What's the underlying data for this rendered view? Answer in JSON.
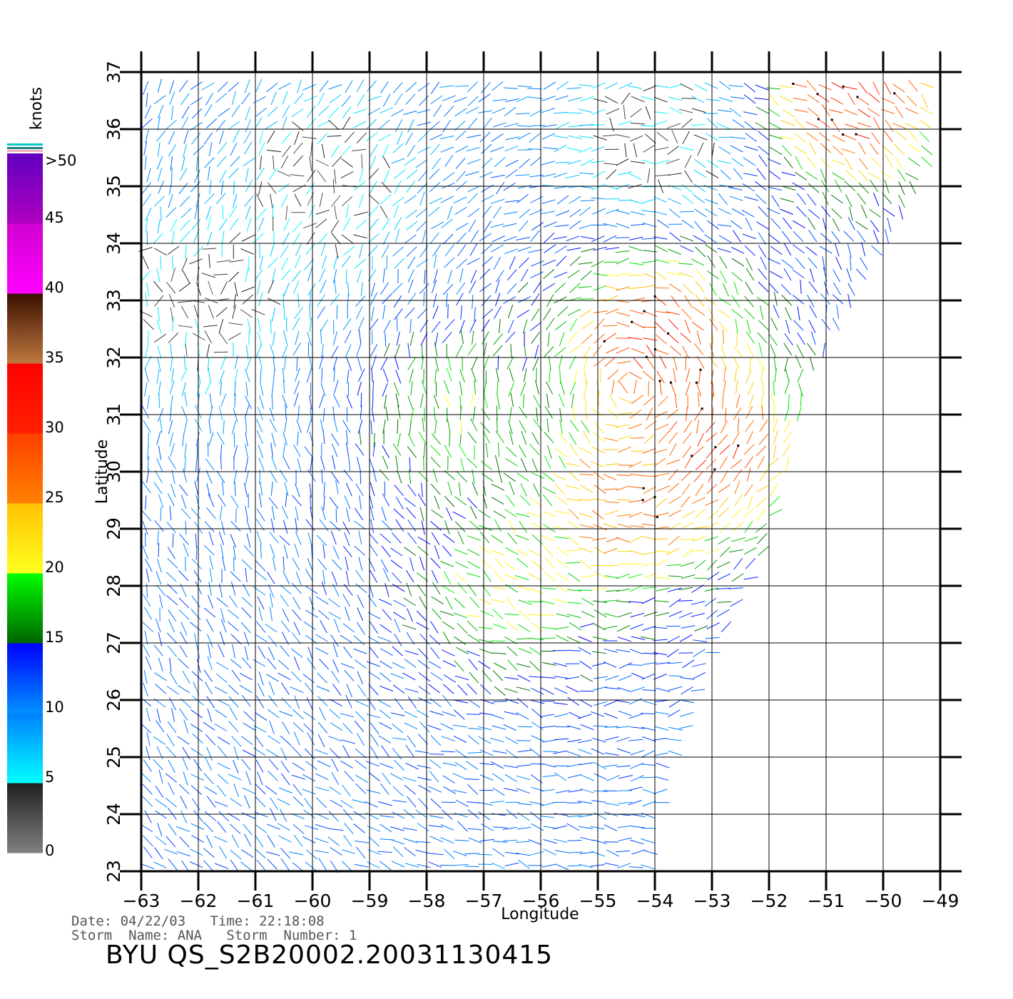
{
  "chart_data": {
    "type": "scatter",
    "title": "",
    "xlabel": "Longitude",
    "ylabel": "Latitude",
    "xlim": [
      -63,
      -49
    ],
    "ylim": [
      23,
      37
    ],
    "xticks": [
      "-63",
      "-62",
      "-61",
      "-60",
      "-59",
      "-58",
      "-57",
      "-56",
      "-55",
      "-54",
      "-53",
      "-52",
      "-51",
      "-50",
      "-49"
    ],
    "yticks": [
      "23",
      "24",
      "25",
      "26",
      "27",
      "28",
      "29",
      "30",
      "31",
      "32",
      "33",
      "34",
      "35",
      "36",
      "37"
    ],
    "grid": true,
    "field": "wind vectors (knots)",
    "swath_edge": [
      [
        -49,
        37
      ],
      [
        -49,
        35.7
      ],
      [
        -50.2,
        33.6
      ],
      [
        -51.3,
        31.6
      ],
      [
        -52,
        28.7
      ],
      [
        -52.9,
        27
      ],
      [
        -53.8,
        24.5
      ],
      [
        -54.1,
        23
      ]
    ],
    "colorbar": {
      "unit": "knots",
      "top_label": ">50",
      "ticks": [
        "45",
        "40",
        "35",
        "30",
        "25",
        "20",
        "15",
        "10",
        "5",
        "0"
      ],
      "bands": [
        {
          "range": [
            0,
            5
          ],
          "colors": [
            "#808080",
            "#202020"
          ]
        },
        {
          "range": [
            5,
            10
          ],
          "colors": [
            "#00ffff",
            "#0080ff"
          ]
        },
        {
          "range": [
            10,
            15
          ],
          "colors": [
            "#0090ff",
            "#0000ff"
          ]
        },
        {
          "range": [
            15,
            20
          ],
          "colors": [
            "#006400",
            "#00ff00"
          ]
        },
        {
          "range": [
            20,
            25
          ],
          "colors": [
            "#ffff20",
            "#ffc000"
          ]
        },
        {
          "range": [
            25,
            30
          ],
          "colors": [
            "#ff8000",
            "#ff4000"
          ]
        },
        {
          "range": [
            30,
            35
          ],
          "colors": [
            "#ff2000",
            "#ff0000"
          ]
        },
        {
          "range": [
            35,
            40
          ],
          "colors": [
            "#c07840",
            "#3a1000"
          ]
        },
        {
          "range": [
            40,
            45
          ],
          "colors": [
            "#ff00ff",
            "#d000d0"
          ]
        },
        {
          "range": [
            45,
            50
          ],
          "colors": [
            "#b000c0",
            "#6000c0"
          ]
        }
      ]
    },
    "regions": [
      {
        "center": [
          -54,
          32.3
        ],
        "speed": 31
      },
      {
        "center": [
          -53,
          30.5
        ],
        "speed": 30
      },
      {
        "center": [
          -54.5,
          29.5
        ],
        "speed": 28
      },
      {
        "center": [
          -50.5,
          36.6
        ],
        "speed": 32
      },
      {
        "center": [
          -56.5,
          28
        ],
        "speed": 21
      },
      {
        "center": [
          -57.5,
          31
        ],
        "speed": 19
      },
      {
        "center": [
          -59.8,
          35
        ],
        "speed": 3
      },
      {
        "center": [
          -62,
          33
        ],
        "speed": 3
      },
      {
        "center": [
          -54,
          35.8
        ],
        "speed": 3
      }
    ]
  },
  "footer": {
    "date_line": "Date: 04/22/03   Time: 22:18:08",
    "storm_line": "Storm  Name: ANA   Storm  Number: 1",
    "product": "BYU  QS_S2B20002.20031130415"
  }
}
